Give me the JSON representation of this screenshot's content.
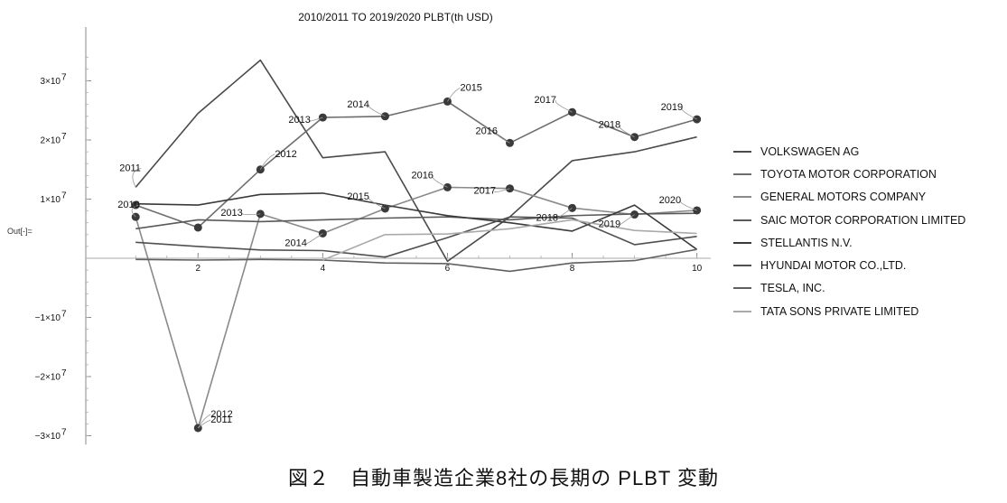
{
  "chart_data": {
    "type": "line",
    "title": "2010/2011 TO 2019/2020 PLBT(th USD)",
    "y_tick_labels": [
      "3×10",
      "2×10",
      "1×10",
      "−1×10",
      "−2×10",
      "−3×10"
    ],
    "y_tick_exps": [
      "7",
      "7",
      "7",
      "7",
      "7",
      "7"
    ],
    "y_ticks": [
      30000000,
      20000000,
      10000000,
      -10000000,
      -20000000,
      -30000000
    ],
    "x_ticks": [
      2,
      4,
      6,
      8,
      10
    ],
    "xlim": [
      0.2,
      10.15
    ],
    "ylim": [
      -31500000,
      38000000
    ],
    "grid": false,
    "legend_position": "right",
    "series": [
      {
        "name": "VOLKSWAGEN AG",
        "color": "#4a4a4a",
        "x": [
          1,
          2,
          3,
          4,
          5,
          6,
          7,
          8,
          9,
          10
        ],
        "y": [
          12000000,
          24500000,
          33500000,
          17000000,
          18000000,
          -500000,
          7000000,
          16500000,
          18000000,
          20500000
        ]
      },
      {
        "name": "TOYOTA MOTOR CORPORATION",
        "color": "#6e6e6e",
        "x": [
          1,
          2,
          3,
          4,
          5,
          6,
          7,
          8,
          9,
          10
        ],
        "y": [
          9000000,
          5200000,
          15000000,
          23800000,
          24000000,
          26500000,
          19500000,
          24700000,
          20500000,
          23500000
        ]
      },
      {
        "name": "GENERAL MOTORS COMPANY",
        "color": "#8a8a8a",
        "x": [
          1,
          2,
          3,
          4,
          5,
          6,
          7,
          8,
          9,
          10
        ],
        "y": [
          7000000,
          -28700000,
          7500000,
          4200000,
          8400000,
          12000000,
          11800000,
          8500000,
          7400000,
          8100000
        ]
      },
      {
        "name": "SAIC MOTOR CORPORATION LIMITED",
        "color": "#5a5a5a",
        "x": [
          1,
          2,
          3,
          4,
          5,
          6,
          7,
          8,
          9,
          10
        ],
        "y": [
          5000000,
          6500000,
          6200000,
          6500000,
          6800000,
          7000000,
          6500000,
          7200000,
          7500000,
          7600000
        ]
      },
      {
        "name": "STELLANTIS N.V.",
        "color": "#3a3a3a",
        "x": [
          1,
          2,
          3,
          4,
          5,
          6,
          7,
          8,
          9,
          10
        ],
        "y": [
          9200000,
          9000000,
          10800000,
          11000000,
          9000000,
          7200000,
          6000000,
          4600000,
          9000000,
          1500000
        ]
      },
      {
        "name": "HYUNDAI MOTOR CO.,LTD.",
        "color": "#505050",
        "x": [
          1,
          2,
          3,
          4,
          5,
          6,
          7,
          8,
          9,
          10
        ],
        "y": [
          2700000,
          2000000,
          1400000,
          1300000,
          200000,
          3500000,
          7000000,
          6800000,
          2300000,
          3700000
        ]
      },
      {
        "name": "TESLA, INC.",
        "color": "#606060",
        "x": [
          1,
          2,
          3,
          4,
          5,
          6,
          7,
          8,
          9,
          10
        ],
        "y": [
          -200000,
          -300000,
          -200000,
          -300000,
          -800000,
          -900000,
          -2200000,
          -800000,
          -400000,
          1500000
        ]
      },
      {
        "name": "TATA SONS PRIVATE LIMITED",
        "color": "#aaaaaa",
        "x": [
          4,
          5,
          6,
          7,
          8,
          9,
          10
        ],
        "y": [
          -300000,
          4000000,
          4100000,
          5000000,
          6500000,
          4700000,
          4200000
        ]
      }
    ],
    "annotations": [
      {
        "text": "2011",
        "series": 0,
        "point": 0,
        "dx": -18,
        "dy": -18
      },
      {
        "text": "2012",
        "series": 1,
        "point": 2,
        "dx": 16,
        "dy": -14
      },
      {
        "text": "2013",
        "series": 1,
        "point": 3,
        "dx": -38,
        "dy": 6
      },
      {
        "text": "2014",
        "series": 1,
        "point": 4,
        "dx": -42,
        "dy": -10
      },
      {
        "text": "2015",
        "series": 1,
        "point": 5,
        "dx": 14,
        "dy": -12
      },
      {
        "text": "2016",
        "series": 1,
        "point": 6,
        "dx": -38,
        "dy": -10
      },
      {
        "text": "2017",
        "series": 1,
        "point": 7,
        "dx": -42,
        "dy": -10
      },
      {
        "text": "2018",
        "series": 1,
        "point": 8,
        "dx": -40,
        "dy": -10
      },
      {
        "text": "2019",
        "series": 1,
        "point": 9,
        "dx": -40,
        "dy": -10
      },
      {
        "text": "2010",
        "series": 2,
        "point": 0,
        "dx": -20,
        "dy": -10
      },
      {
        "text": "2011",
        "series": 2,
        "point": 1,
        "dx": 14,
        "dy": -6
      },
      {
        "text": "2012",
        "series": 2,
        "point": 1,
        "dx": 14,
        "dy": -12,
        "useY": -28700000
      },
      {
        "text": "2013",
        "series": 2,
        "point": 2,
        "dx": -44,
        "dy": 2
      },
      {
        "text": "2014",
        "series": 2,
        "point": 3,
        "dx": -42,
        "dy": 14
      },
      {
        "text": "2015",
        "series": 2,
        "point": 4,
        "dx": -42,
        "dy": -10
      },
      {
        "text": "2016",
        "series": 2,
        "point": 5,
        "dx": -40,
        "dy": -10
      },
      {
        "text": "2017",
        "series": 2,
        "point": 6,
        "dx": -40,
        "dy": 6
      },
      {
        "text": "2018",
        "series": 2,
        "point": 7,
        "dx": -40,
        "dy": 14
      },
      {
        "text": "2019",
        "series": 2,
        "point": 8,
        "dx": -40,
        "dy": 14
      },
      {
        "text": "2020",
        "series": 2,
        "point": 9,
        "dx": -42,
        "dy": -8
      }
    ]
  },
  "out_label": "Out[-]=",
  "caption": "図２　自動車製造企業8社の長期の PLBT 変動"
}
